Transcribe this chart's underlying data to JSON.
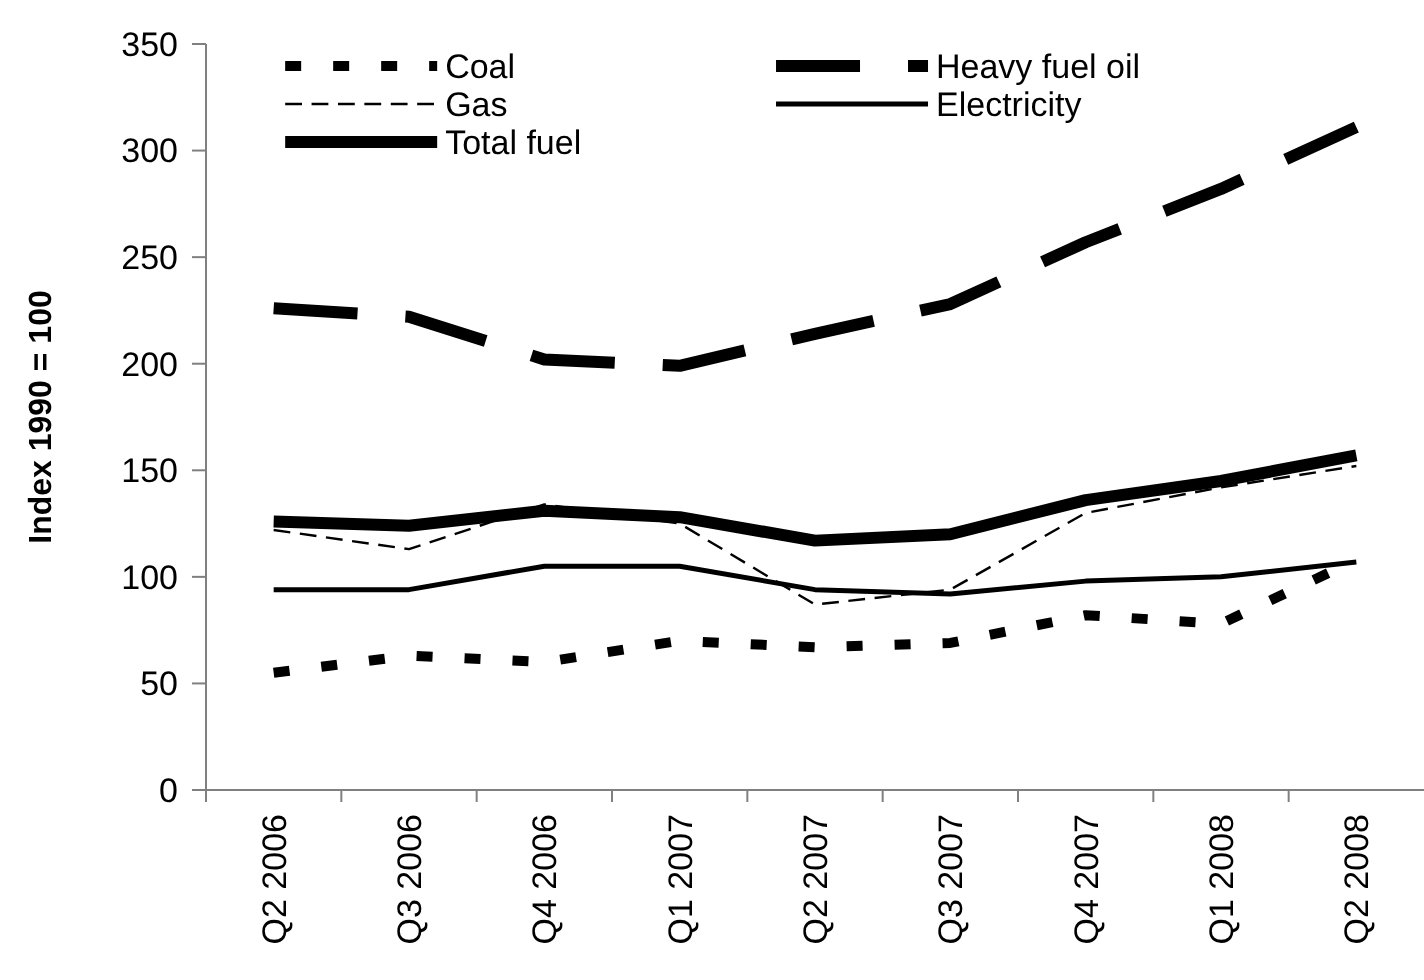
{
  "chart_data": {
    "type": "line",
    "ylabel": "Index 1990 = 100",
    "categories": [
      "Q2 2006",
      "Q3 2006",
      "Q4 2006",
      "Q1 2007",
      "Q2 2007",
      "Q3 2007",
      "Q4 2007",
      "Q1 2008",
      "Q2 2008"
    ],
    "series": [
      {
        "name": "Coal",
        "color": "#000000",
        "line_style": "dotted",
        "values": [
          55,
          63,
          60,
          70,
          67,
          69,
          82,
          78,
          108
        ]
      },
      {
        "name": "Heavy fuel oil",
        "color": "#000000",
        "line_style": "dashed",
        "values": [
          226,
          222,
          202,
          199,
          214,
          228,
          257,
          282,
          311
        ]
      },
      {
        "name": "Gas",
        "color": "#000000",
        "line_style": "dashed",
        "values": [
          122,
          113,
          134,
          125,
          87,
          94,
          130,
          142,
          152
        ]
      },
      {
        "name": "Electricity",
        "color": "#000000",
        "line_style": "solid",
        "values": [
          94,
          94,
          105,
          105,
          94,
          92,
          98,
          100,
          107
        ]
      },
      {
        "name": "Total fuel",
        "color": "#000000",
        "line_style": "solid",
        "values": [
          126,
          124,
          131,
          128,
          117,
          120,
          136,
          145,
          157
        ]
      }
    ],
    "ylim": [
      0,
      350
    ],
    "yticks": [
      0,
      50,
      100,
      150,
      200,
      250,
      300,
      350
    ],
    "grid": false,
    "legend": "top",
    "marker": "none"
  }
}
